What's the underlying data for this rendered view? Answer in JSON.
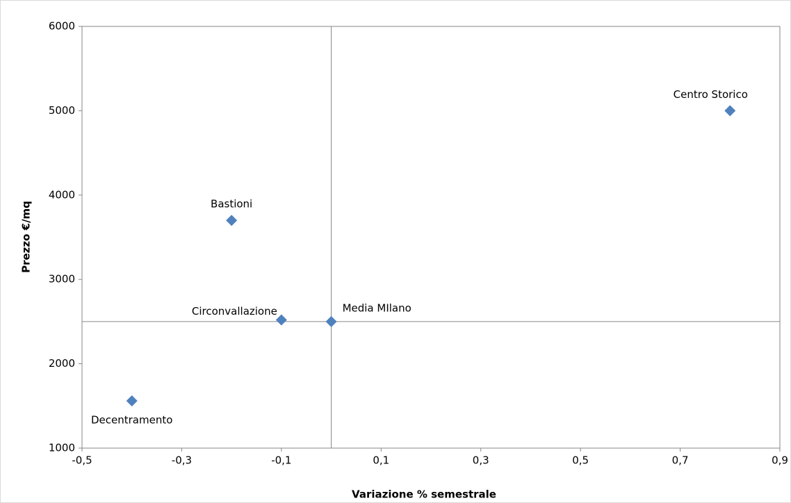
{
  "chart_data": {
    "type": "scatter",
    "x_label": "Variazione % semestrale",
    "y_label": "Prezzo €/mq",
    "point_labels": [
      "Centro Storico",
      "Bastioni",
      "Circonvallazione",
      "Media MIlano",
      "Decentramento"
    ],
    "x": [
      0.8,
      -0.2,
      -0.1,
      0,
      -0.4
    ],
    "values": [
      5000,
      3700,
      2520,
      2500,
      1560
    ],
    "color": "#4f81bd",
    "xlim": [
      -0.5,
      0.9
    ],
    "xticks": [
      {
        "value": -0.5,
        "label": "-0,5"
      },
      {
        "value": -0.3,
        "label": "-0,3"
      },
      {
        "value": -0.1,
        "label": "-0,1"
      },
      {
        "value": 0.1,
        "label": "0,1"
      },
      {
        "value": 0.3,
        "label": "0,3"
      },
      {
        "value": 0.5,
        "label": "0,5"
      },
      {
        "value": 0.7,
        "label": "0,7"
      },
      {
        "value": 0.9,
        "label": "0,9"
      }
    ],
    "ylim": [
      1000,
      6000
    ],
    "yticks": [
      1000,
      2000,
      3000,
      4000,
      5000,
      6000
    ],
    "axis_cross": {
      "x": 0,
      "y": 2500
    }
  }
}
